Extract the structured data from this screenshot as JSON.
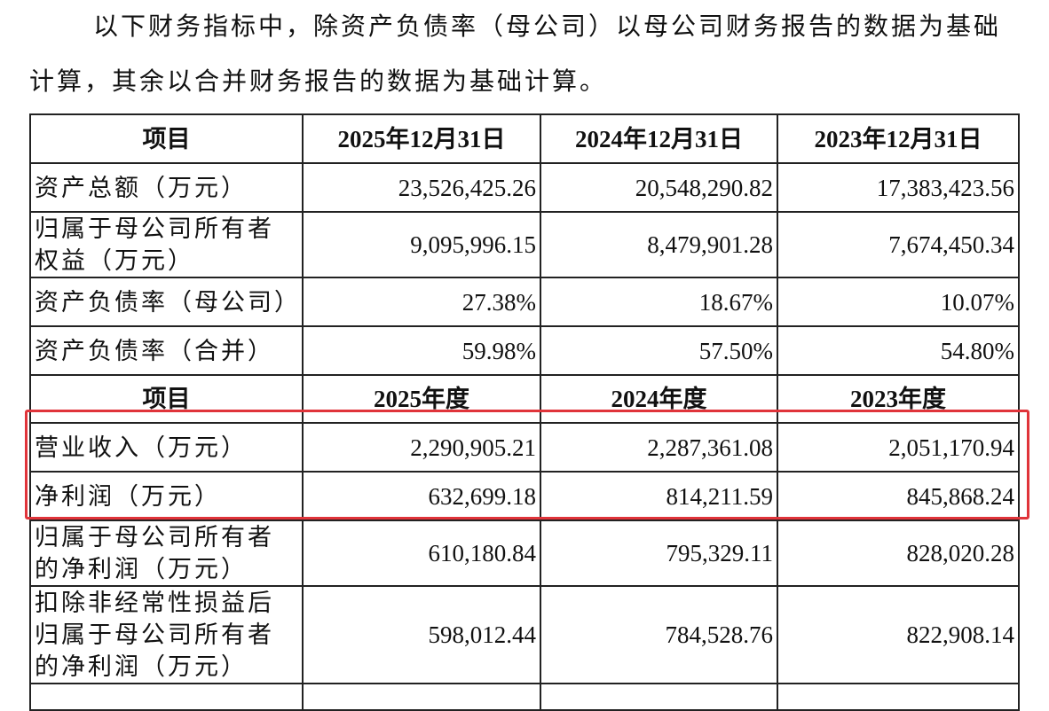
{
  "intro": "以下财务指标中，除资产负债率（母公司）以母公司财务报告的数据为基础计算，其余以合并财务报告的数据为基础计算。",
  "balance_header": [
    "项目",
    "2025年12月31日",
    "2024年12月31日",
    "2023年12月31日"
  ],
  "balance_rows": [
    [
      "资产总额（万元）",
      "23,526,425.26",
      "20,548,290.82",
      "17,383,423.56"
    ],
    [
      "归属于母公司所有者权益（万元）",
      "9,095,996.15",
      "8,479,901.28",
      "7,674,450.34"
    ],
    [
      "资产负债率（母公司）",
      "27.38%",
      "18.67%",
      "10.07%"
    ],
    [
      "资产负债率（合并）",
      "59.98%",
      "57.50%",
      "54.80%"
    ]
  ],
  "income_header": [
    "项目",
    "2025年度",
    "2024年度",
    "2023年度"
  ],
  "income_rows": [
    [
      "营业收入（万元）",
      "2,290,905.21",
      "2,287,361.08",
      "2,051,170.94"
    ],
    [
      "净利润（万元）",
      "632,699.18",
      "814,211.59",
      "845,868.24"
    ],
    [
      "归属于母公司所有者的净利润（万元）",
      "610,180.84",
      "795,329.11",
      "828,020.28"
    ],
    [
      "扣除非经常性损益后归属于母公司所有者的净利润（万元）",
      "598,012.44",
      "784,528.76",
      "822,908.14"
    ]
  ],
  "highlight_color": "#e0343a"
}
